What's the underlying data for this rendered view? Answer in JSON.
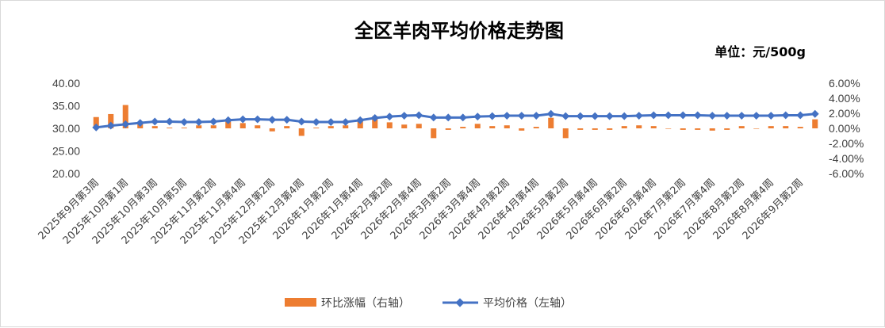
{
  "chart_data": {
    "title": "全区羊肉平均价格走势图",
    "unit_label": "单位：元/500g",
    "type": "bar+line",
    "categories": [
      "2025年9月第3周",
      "2025年9月第4周",
      "2025年10月第1周",
      "2025年10月第2周",
      "2025年10月第3周",
      "2025年10月第4周",
      "2025年10月第5周",
      "2025年11月第1周",
      "2025年11月第2周",
      "2025年11月第3周",
      "2025年11月第4周",
      "2025年12月第1周",
      "2025年12月第2周",
      "2025年12月第3周",
      "2025年12月第4周",
      "2026年1月第1周",
      "2026年1月第2周",
      "2026年1月第3周",
      "2026年1月第4周",
      "2026年2月第1周",
      "2026年2月第2周",
      "2026年2月第3周",
      "2026年2月第4周",
      "2026年3月第1周",
      "2026年3月第2周",
      "2026年3月第3周",
      "2026年3月第4周",
      "2026年4月第1周",
      "2026年4月第2周",
      "2026年4月第3周",
      "2026年4月第4周",
      "2026年5月第1周",
      "2026年5月第2周",
      "2026年5月第3周",
      "2026年5月第4周",
      "2026年6月第1周",
      "2026年6月第2周",
      "2026年6月第3周",
      "2026年6月第4周",
      "2026年7月第1周",
      "2026年7月第2周",
      "2026年7月第3周",
      "2026年7月第4周",
      "2026年8月第1周",
      "2026年8月第2周",
      "2026年8月第3周",
      "2026年8月第4周",
      "2026年9月第1周",
      "2026年9月第2周",
      "2026年9月第3周"
    ],
    "series": [
      {
        "name": "环比涨幅（右轴）",
        "type": "bar",
        "axis": "right",
        "color": "#ED7D31",
        "values": [
          1.5,
          1.9,
          3.1,
          0.6,
          0.3,
          0.1,
          0.1,
          0.4,
          0.4,
          0.9,
          0.7,
          0.4,
          -0.4,
          0.3,
          -1.0,
          0.1,
          0.3,
          0.4,
          1.3,
          1.6,
          0.8,
          0.5,
          0.6,
          -1.3,
          -0.2,
          0.2,
          0.6,
          0.3,
          0.4,
          -0.3,
          0.2,
          1.4,
          -1.3,
          -0.2,
          -0.2,
          -0.2,
          0.3,
          0.4,
          0.3,
          0.0,
          -0.2,
          -0.2,
          -0.3,
          -0.2,
          0.3,
          0.0,
          0.3,
          0.3,
          0.2,
          1.2
        ]
      },
      {
        "name": "平均价格（左轴）",
        "type": "line",
        "axis": "left",
        "color": "#4472C4",
        "values": [
          30.2,
          30.6,
          30.9,
          31.2,
          31.5,
          31.5,
          31.4,
          31.4,
          31.5,
          31.8,
          32.0,
          32.0,
          31.9,
          31.9,
          31.5,
          31.4,
          31.4,
          31.4,
          31.8,
          32.3,
          32.6,
          32.8,
          32.9,
          32.4,
          32.4,
          32.4,
          32.6,
          32.7,
          32.8,
          32.8,
          32.8,
          33.2,
          32.7,
          32.7,
          32.7,
          32.7,
          32.7,
          32.8,
          32.9,
          32.9,
          32.9,
          32.9,
          32.8,
          32.8,
          32.8,
          32.8,
          32.8,
          32.9,
          32.9,
          33.2
        ]
      }
    ],
    "y_left": {
      "min": 20,
      "max": 40,
      "ticks": [
        "20.00",
        "25.00",
        "30.00",
        "35.00",
        "40.00"
      ]
    },
    "y_right": {
      "min": -6,
      "max": 6,
      "ticks": [
        "-6.00%",
        "-4.00%",
        "-2.00%",
        "0.00%",
        "2.00%",
        "4.00%",
        "6.00%"
      ]
    },
    "legend_position": "bottom",
    "grid": false
  }
}
